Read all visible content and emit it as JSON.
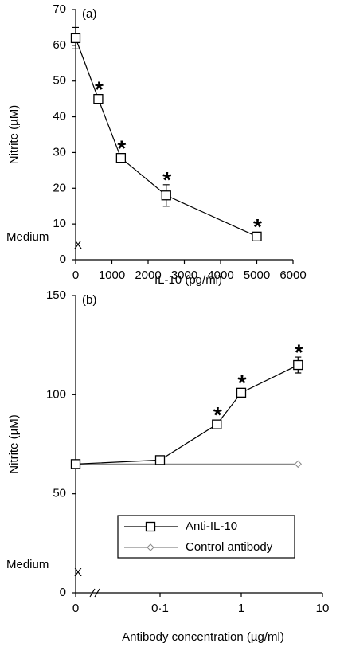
{
  "chart_data": [
    {
      "type": "line",
      "panel_label": "(a)",
      "x_label": "IL-10 (pg/ml)",
      "y_label": "Nitrite (µM)",
      "xlim": [
        0,
        6000
      ],
      "xticks": [
        0,
        1000,
        2000,
        3000,
        4000,
        5000,
        6000
      ],
      "ylim": [
        0,
        70
      ],
      "yticks": [
        0,
        10,
        20,
        30,
        40,
        50,
        60,
        70
      ],
      "x": [
        0,
        625,
        1250,
        2500,
        5000
      ],
      "series": [
        {
          "color": "#000000",
          "marker": "square",
          "values": [
            62,
            45,
            28.5,
            18,
            6.5
          ],
          "errors": [
            3,
            null,
            null,
            3,
            null
          ],
          "point_labels": [
            null,
            "*",
            "*",
            "*",
            "*"
          ]
        }
      ],
      "reference": {
        "label": "Medium",
        "marker": "X",
        "value": 4
      }
    },
    {
      "type": "line",
      "panel_label": "(b)",
      "x_label": "Antibody concentration (µg/ml)",
      "y_label": "Nitrite (µM)",
      "xscale": "log-with-break",
      "xlim": [
        0,
        10
      ],
      "xticks": [
        0,
        {
          "value": 0.1,
          "label": "0·1"
        },
        1,
        10
      ],
      "ylim": [
        0,
        150
      ],
      "yticks": [
        0,
        50,
        100,
        150
      ],
      "x": [
        0,
        0.1,
        0.5,
        1,
        5
      ],
      "legend": "lower right",
      "series": [
        {
          "name": "Control antibody",
          "color": "#888888",
          "marker": "diamond",
          "x": [
            0,
            5
          ],
          "values": [
            65,
            65
          ]
        },
        {
          "name": "Anti-IL-10",
          "color": "#000000",
          "marker": "square",
          "values": [
            65,
            67,
            85,
            101,
            115
          ],
          "errors": [
            null,
            null,
            null,
            null,
            4
          ],
          "point_labels": [
            null,
            null,
            "*",
            "*",
            "*"
          ]
        }
      ],
      "reference": {
        "label": "Medium",
        "marker": "X",
        "value": 10
      }
    }
  ]
}
